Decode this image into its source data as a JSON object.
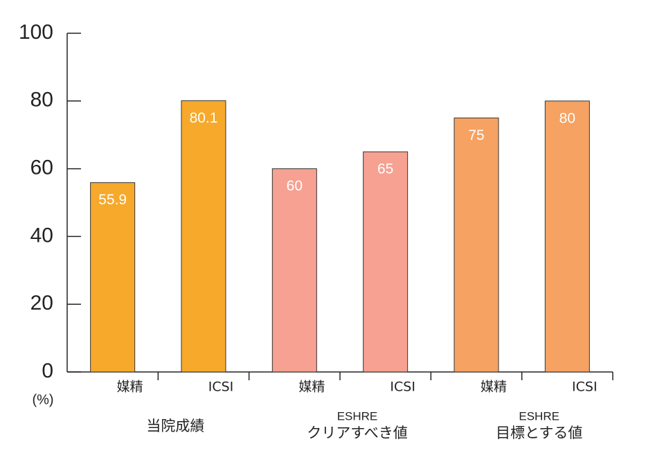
{
  "chart_data": {
    "type": "bar",
    "categories": [
      "媒精",
      "ICSI",
      "媒精",
      "ICSI",
      "媒精",
      "ICSI"
    ],
    "values": [
      55.9,
      80.1,
      60,
      65,
      75,
      80
    ],
    "colors": [
      "#f6a92b",
      "#f6a92b",
      "#f6a191",
      "#f6a191",
      "#f6a262",
      "#f6a262"
    ],
    "groups": [
      {
        "label": "当院成績"
      },
      {
        "sublabel": "ESHRE",
        "label": "クリアすべき値"
      },
      {
        "sublabel": "ESHRE",
        "label": "目標とする値"
      }
    ],
    "y_unit": "(%)",
    "ylim": [
      0,
      100
    ],
    "yticks": [
      0,
      20,
      40,
      60,
      80,
      100
    ]
  }
}
